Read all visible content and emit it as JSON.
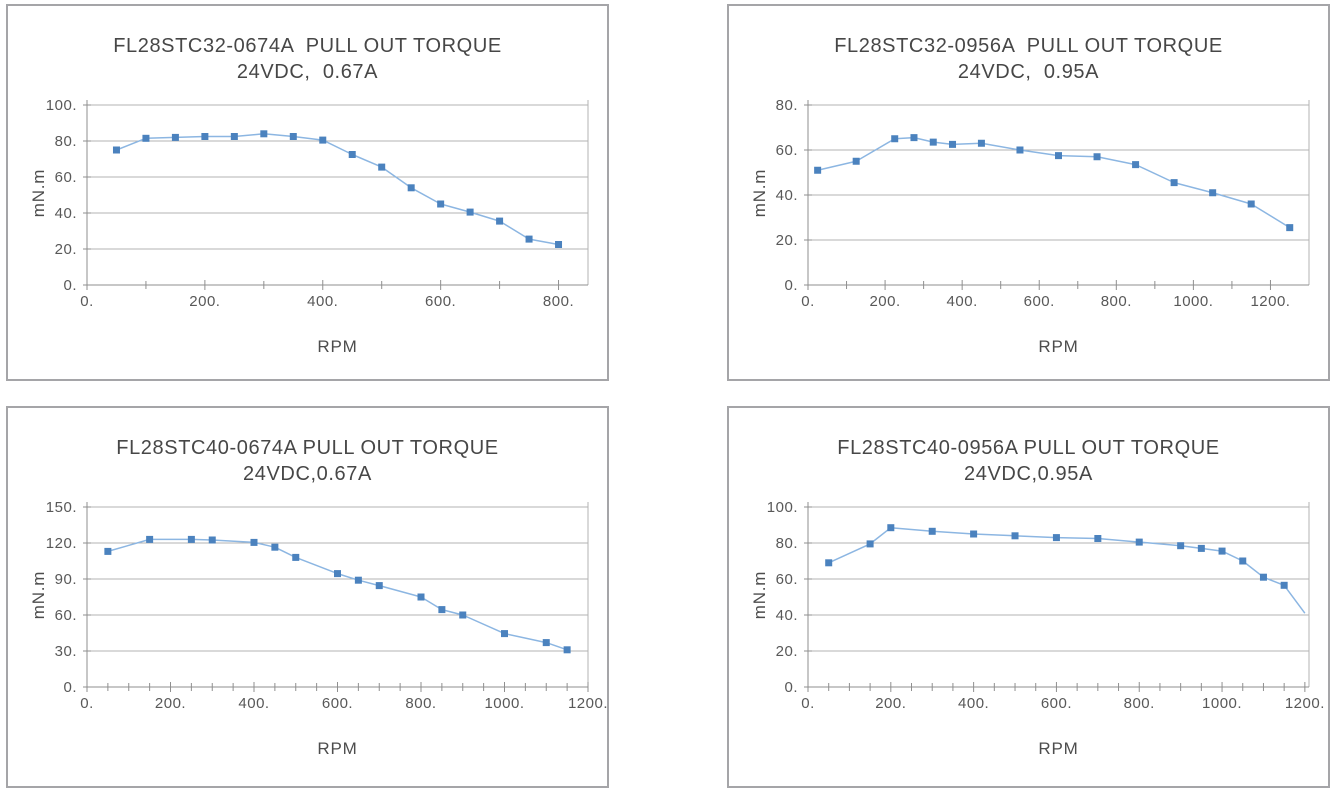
{
  "colors": {
    "marker": "#4b82be",
    "line": "#8cb6e2",
    "grid": "#b3b3b3",
    "axis": "#8f8f8f",
    "panel_border": "#a5a5a8",
    "title_text": "#474747",
    "tick_text": "#585858"
  },
  "chart_data": [
    {
      "type": "line",
      "model": "FL28STC32-0674A",
      "title": "FL28STC32-0674A  PULL OUT TORQUE",
      "subtitle": "24VDC,  0.67A",
      "xlabel": "RPM",
      "ylabel": "mN.m",
      "x": [
        50,
        100,
        150,
        200,
        250,
        300,
        350,
        400,
        450,
        500,
        550,
        600,
        650,
        700,
        750,
        800
      ],
      "y": [
        75,
        81.5,
        82,
        82.5,
        82.5,
        84,
        82.5,
        80.5,
        72.5,
        65.5,
        54,
        45,
        40.5,
        35.5,
        25.5,
        22.5
      ],
      "xlim": [
        0,
        850
      ],
      "ylim": [
        0,
        100
      ],
      "x_major_ticks": [
        0,
        200,
        400,
        600,
        800
      ],
      "x_tick_labels": [
        "0.",
        "200.",
        "400.",
        "600.",
        "800."
      ],
      "x_minor_step": 100,
      "y_ticks": [
        0,
        20,
        40,
        60,
        80,
        100
      ],
      "y_tick_labels": [
        "0.",
        "20.",
        "40.",
        "60.",
        "80.",
        "100."
      ],
      "grid": true,
      "marker": "square",
      "marker_on_last_point": true
    },
    {
      "type": "line",
      "model": "FL28STC32-0956A",
      "title": "FL28STC32-0956A  PULL OUT TORQUE",
      "subtitle": "24VDC,  0.95A",
      "xlabel": "RPM",
      "ylabel": "mN.m",
      "x": [
        25,
        125,
        225,
        275,
        325,
        375,
        450,
        550,
        650,
        750,
        850,
        950,
        1050,
        1150,
        1250
      ],
      "y": [
        51,
        55,
        65,
        65.5,
        63.5,
        62.5,
        63,
        60,
        57.5,
        57,
        53.5,
        45.5,
        41,
        36,
        25.5
      ],
      "xlim": [
        0,
        1300
      ],
      "ylim": [
        0,
        80
      ],
      "x_major_ticks": [
        0,
        200,
        400,
        600,
        800,
        1000,
        1200
      ],
      "x_tick_labels": [
        "0.",
        "200.",
        "400.",
        "600.",
        "800.",
        "1000.",
        "1200."
      ],
      "x_minor_step": 100,
      "y_ticks": [
        0,
        20,
        40,
        60,
        80
      ],
      "y_tick_labels": [
        "0.",
        "20.",
        "40.",
        "60.",
        "80."
      ],
      "grid": true,
      "marker": "square",
      "marker_on_last_point": true
    },
    {
      "type": "line",
      "model": "FL28STC40-0674A",
      "title": "FL28STC40-0674A PULL OUT TORQUE",
      "subtitle": "24VDC,0.67A",
      "xlabel": "RPM",
      "ylabel": "mN.m",
      "x": [
        50,
        150,
        250,
        300,
        400,
        450,
        500,
        600,
        650,
        700,
        800,
        850,
        900,
        1000,
        1100,
        1150
      ],
      "y": [
        113,
        123,
        123,
        122.5,
        120.5,
        116.5,
        108,
        94.5,
        89,
        84.5,
        75,
        64.5,
        60,
        44.5,
        37,
        31
      ],
      "xlim": [
        0,
        1200
      ],
      "ylim": [
        0,
        150
      ],
      "x_major_ticks": [
        0,
        200,
        400,
        600,
        800,
        1000,
        1200
      ],
      "x_tick_labels": [
        "0.",
        "200.",
        "400.",
        "600.",
        "800.",
        "1000.",
        "1200."
      ],
      "x_minor_step": 50,
      "y_ticks": [
        0,
        30,
        60,
        90,
        120,
        150
      ],
      "y_tick_labels": [
        "0.",
        "30.",
        "60.",
        "90.",
        "120.",
        "150."
      ],
      "grid": true,
      "marker": "square",
      "marker_on_last_point": true
    },
    {
      "type": "line",
      "model": "FL28STC40-0956A",
      "title": "FL28STC40-0956A PULL OUT TORQUE",
      "subtitle": "24VDC,0.95A",
      "xlabel": "RPM",
      "ylabel": "mN.m",
      "x": [
        50,
        150,
        200,
        300,
        400,
        500,
        600,
        700,
        800,
        900,
        950,
        1000,
        1050,
        1100,
        1150,
        1200
      ],
      "y": [
        69,
        79.5,
        88.5,
        86.5,
        85,
        84,
        83,
        82.5,
        80.5,
        78.5,
        77,
        75.5,
        70,
        61,
        56.5,
        41
      ],
      "xlim": [
        0,
        1210
      ],
      "ylim": [
        0,
        100
      ],
      "x_major_ticks": [
        0,
        200,
        400,
        600,
        800,
        1000,
        1200
      ],
      "x_tick_labels": [
        "0.",
        "200.",
        "400.",
        "600.",
        "800.",
        "1000.",
        "1200."
      ],
      "x_minor_step": 50,
      "y_ticks": [
        0,
        20,
        40,
        60,
        80,
        100
      ],
      "y_tick_labels": [
        "0.",
        "20.",
        "40.",
        "60.",
        "80.",
        "100."
      ],
      "grid": true,
      "marker": "square",
      "marker_on_last_point": false
    }
  ]
}
